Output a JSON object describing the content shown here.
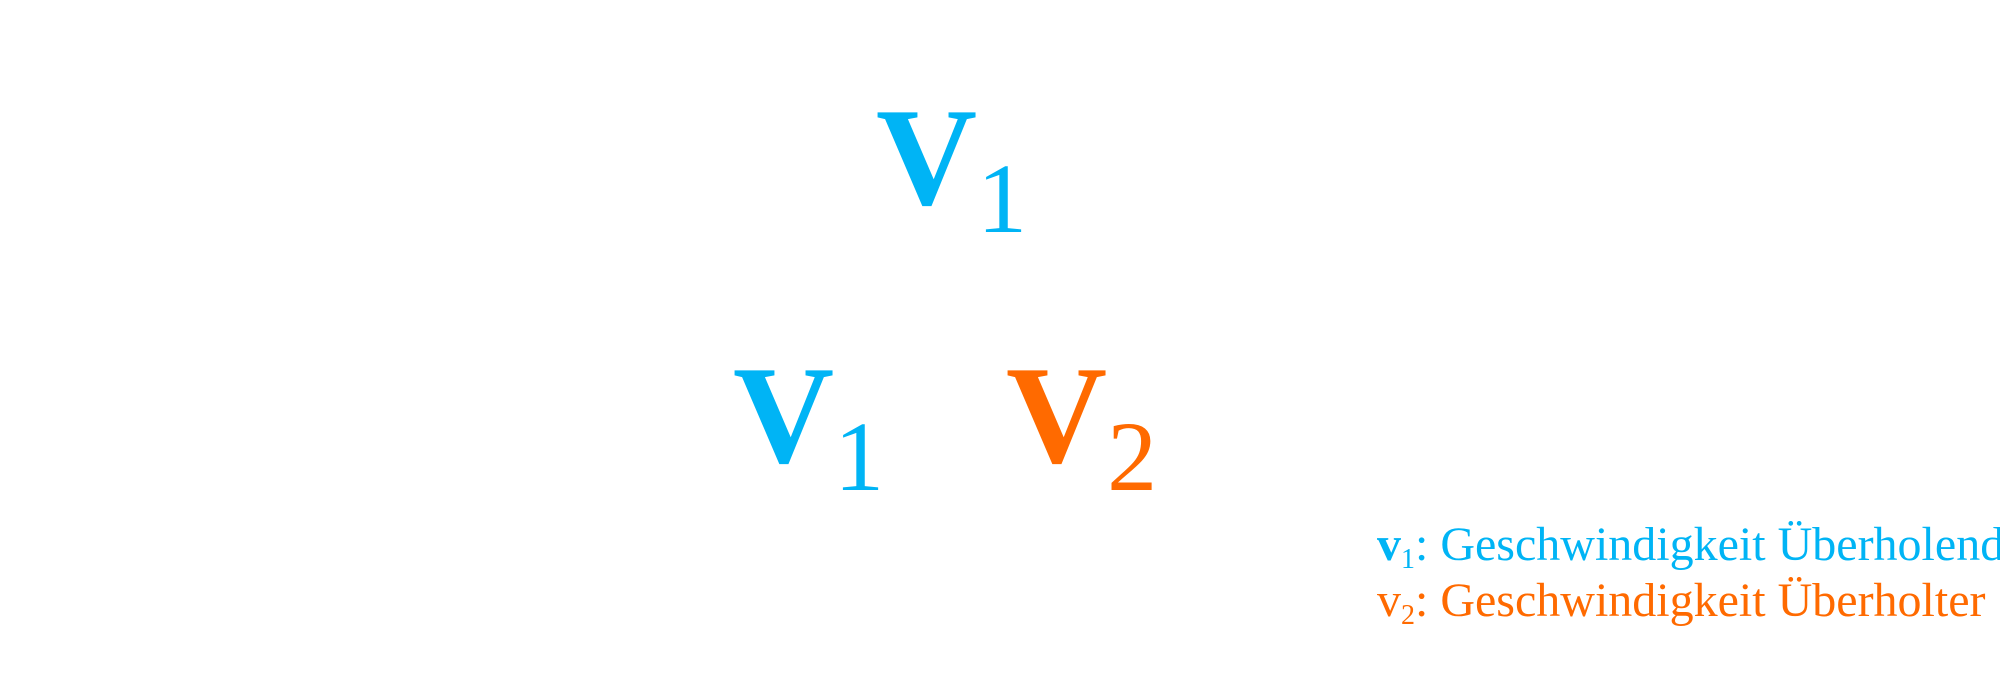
{
  "colors": {
    "v1": "#00B4F5",
    "v2": "#FF6A00"
  },
  "diagram": {
    "top_label": {
      "symbol": "V",
      "subscript": "1"
    },
    "bottom_left_label": {
      "symbol": "V",
      "subscript": "1"
    },
    "bottom_right_label": {
      "symbol": "V",
      "subscript": "2"
    }
  },
  "legend": [
    {
      "symbol": "v",
      "subscript": "1",
      "text": ": Geschwindigkeit Überholender"
    },
    {
      "symbol": "v",
      "subscript": "2",
      "text": ": Geschwindigkeit Überholter"
    }
  ]
}
